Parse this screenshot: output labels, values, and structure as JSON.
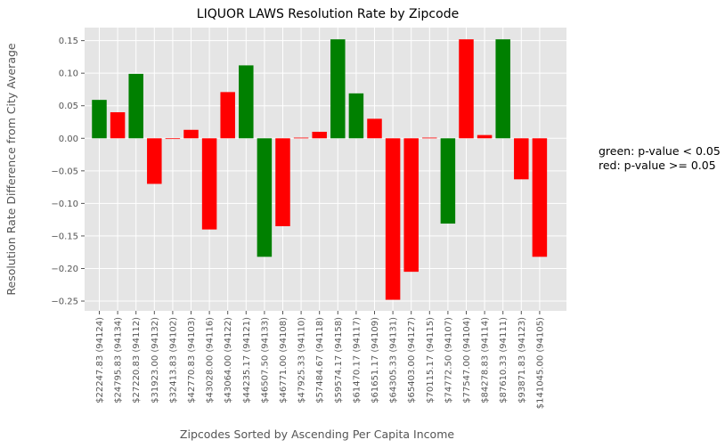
{
  "chart_data": {
    "type": "bar",
    "title": "LIQUOR LAWS Resolution Rate by Zipcode",
    "xlabel": "Zipcodes Sorted by Ascending Per Capita Income",
    "ylabel": "Resolution Rate Difference from City Average",
    "ylim": [
      -0.265,
      0.17
    ],
    "yticks": [
      0.15,
      0.1,
      0.05,
      0.0,
      -0.05,
      -0.1,
      -0.15,
      -0.2,
      -0.25
    ],
    "ytick_labels": [
      "0.15",
      "0.10",
      "0.05",
      "0.00",
      "−0.05",
      "−0.10",
      "−0.15",
      "−0.20",
      "−0.25"
    ],
    "grid": true,
    "categories": [
      "$22247.83 (94124)",
      "$24795.83 (94134)",
      "$27220.83 (94112)",
      "$31923.00 (94132)",
      "$32413.83 (94102)",
      "$42770.83 (94103)",
      "$43028.00 (94116)",
      "$43064.00 (94122)",
      "$44235.17 (94121)",
      "$46507.50 (94133)",
      "$46771.00 (94108)",
      "$47925.33 (94110)",
      "$57484.67 (94118)",
      "$59574.17 (94158)",
      "$61470.17 (94117)",
      "$61651.17 (94109)",
      "$64305.33 (94131)",
      "$65403.00 (94127)",
      "$70115.17 (94115)",
      "$74772.50 (94107)",
      "$77547.00 (94104)",
      "$84278.83 (94114)",
      "$87610.33 (94111)",
      "$93871.83 (94123)",
      "$141045.00 (94105)"
    ],
    "values": [
      0.059,
      0.04,
      0.099,
      -0.07,
      0.0,
      0.013,
      -0.14,
      0.071,
      0.112,
      -0.182,
      -0.135,
      0.001,
      0.01,
      0.152,
      0.069,
      0.03,
      -0.248,
      -0.205,
      0.001,
      -0.131,
      0.152,
      0.005,
      0.152,
      -0.063,
      -0.182
    ],
    "significant": [
      true,
      false,
      true,
      false,
      false,
      false,
      false,
      false,
      true,
      true,
      false,
      false,
      false,
      true,
      true,
      false,
      false,
      false,
      false,
      true,
      false,
      false,
      true,
      false,
      false
    ],
    "colors": {
      "significant": "#008000",
      "not_significant": "#ff0000"
    }
  },
  "annotation": {
    "line1": "green: p-value < 0.05",
    "line2": "red: p-value >= 0.05"
  }
}
